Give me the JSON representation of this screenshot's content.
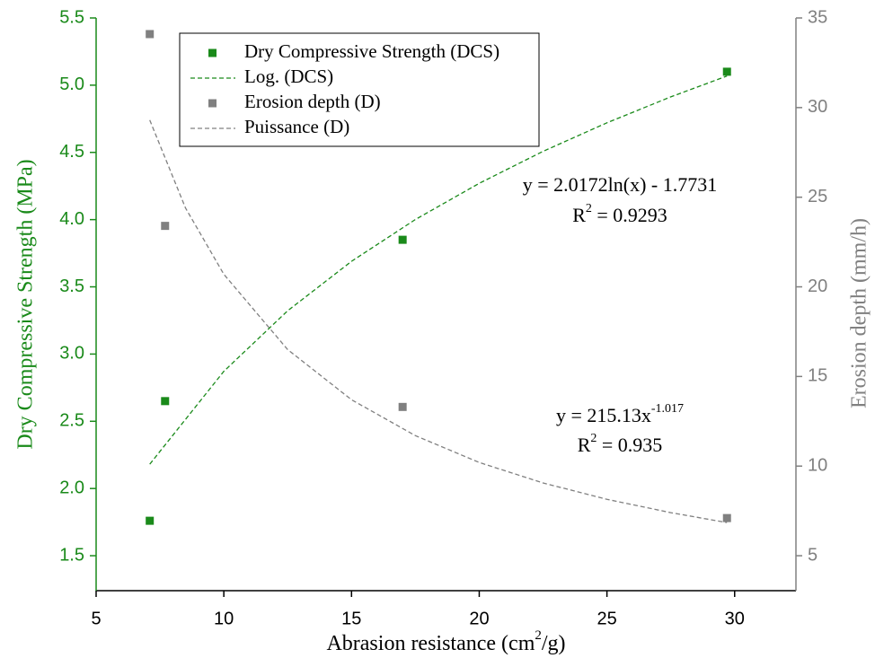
{
  "chart_data": {
    "type": "scatter",
    "x_label": {
      "text": "Abrasion resistance (cm",
      "sup": "2",
      "tail": "/g)"
    },
    "y_label": "Dry Compressive Strength (MPa)",
    "y2_label": "Erosion depth (mm/h)",
    "xlim": [
      5,
      32.4
    ],
    "xticks": [
      5,
      10,
      15,
      20,
      25,
      30
    ],
    "ylim": [
      1.24,
      5.5
    ],
    "yticks": [
      1.5,
      {
        "value": 2,
        "label": "2.0"
      },
      2.5,
      {
        "value": 3,
        "label": "3.0"
      },
      3.5,
      {
        "value": 4,
        "label": "4.0"
      },
      4.5,
      {
        "value": 5,
        "label": "5.0"
      },
      5.5
    ],
    "y2lim": [
      3.05,
      35
    ],
    "y2ticks": [
      5,
      10,
      15,
      20,
      25,
      30,
      35
    ],
    "y_color": "#1a8a1a",
    "y2_color": "#808080",
    "legend": "top-left",
    "series": [
      {
        "name": "Dry Compressive Strength (DCS)",
        "type": "scatter",
        "color": "#1a8a1a",
        "axis": "y",
        "x": [
          7.1,
          7.7,
          17.0,
          29.7
        ],
        "values": [
          1.76,
          2.65,
          3.85,
          5.1
        ]
      },
      {
        "name": "Log. (DCS)",
        "type": "line",
        "color": "#1a8a1a",
        "axis": "y",
        "x": [
          7.1,
          10,
          12.5,
          15,
          17.5,
          20,
          22.5,
          25,
          27.5,
          29.7
        ],
        "values": [
          2.181,
          2.872,
          3.322,
          3.69,
          4.001,
          4.27,
          4.508,
          4.72,
          4.913,
          5.068
        ]
      },
      {
        "name": "Erosion depth (D)",
        "type": "scatter",
        "color": "#808080",
        "axis": "y2",
        "x": [
          7.1,
          7.7,
          17.0,
          29.7
        ],
        "values": [
          34.1,
          23.4,
          13.3,
          7.1
        ]
      },
      {
        "name": "Puissance (D)",
        "type": "line",
        "color": "#808080",
        "axis": "y2",
        "x": [
          7.1,
          8.5,
          10,
          12.5,
          15,
          17.5,
          20,
          22.5,
          25,
          27.5,
          29.7
        ],
        "values": [
          29.3,
          24.4,
          20.7,
          16.5,
          13.7,
          11.7,
          10.2,
          9.06,
          8.15,
          7.4,
          6.85
        ]
      }
    ],
    "annotations": [
      {
        "text": "y = 2.0172ln(x) - 1.7731"
      },
      {
        "text": "R",
        "sup": "2",
        "tail": " = 0.9293"
      },
      {
        "text": "y = 215.13x",
        "sup": "-1.017"
      },
      {
        "text": "R",
        "sup": "2",
        "tail": " = 0.935"
      }
    ]
  }
}
